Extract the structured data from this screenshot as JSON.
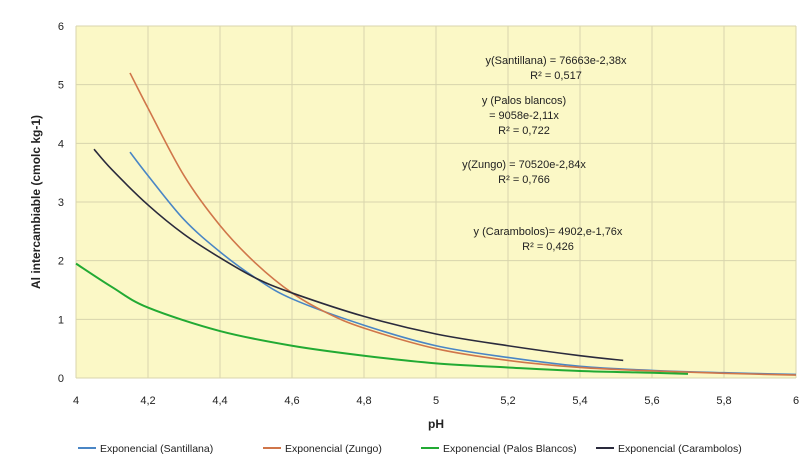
{
  "chart_data": {
    "type": "line",
    "xlabel": "pH",
    "ylabel": "Al intercambiable (cmolc kg-1)",
    "xlim": [
      4,
      6
    ],
    "ylim": [
      0,
      6
    ],
    "x_ticks": [
      "4",
      "4,2",
      "4,4",
      "4,6",
      "4,8",
      "5",
      "5,2",
      "5,4",
      "5,6",
      "5,8",
      "6"
    ],
    "y_ticks": [
      "0",
      "1",
      "2",
      "3",
      "4",
      "5",
      "6"
    ],
    "grid": true,
    "background": "#fbf8c6",
    "legend_position": "bottom",
    "series": [
      {
        "name": "Exponencial (Santillana)",
        "color": "#4a86c5",
        "x": [
          4.15,
          4.2,
          4.3,
          4.4,
          4.5,
          4.6,
          4.8,
          5.0,
          5.2,
          5.4,
          5.6,
          5.8,
          6.0
        ],
        "y": [
          3.85,
          3.45,
          2.7,
          2.15,
          1.7,
          1.35,
          0.9,
          0.55,
          0.35,
          0.2,
          0.13,
          0.09,
          0.06
        ]
      },
      {
        "name": "Exponencial (Zungo)",
        "color": "#d0764a",
        "x": [
          4.15,
          4.2,
          4.3,
          4.4,
          4.5,
          4.6,
          4.7,
          4.8,
          5.0,
          5.2,
          5.4,
          5.6,
          5.8,
          6.0
        ],
        "y": [
          5.2,
          4.6,
          3.45,
          2.6,
          1.95,
          1.45,
          1.1,
          0.85,
          0.5,
          0.3,
          0.18,
          0.12,
          0.08,
          0.05
        ]
      },
      {
        "name": "Exponencial (Palos Blancos)",
        "color": "#22aa33",
        "x": [
          4.0,
          4.1,
          4.2,
          4.4,
          4.6,
          4.8,
          5.0,
          5.2,
          5.4,
          5.6,
          5.7
        ],
        "y": [
          1.95,
          1.55,
          1.2,
          0.8,
          0.55,
          0.38,
          0.25,
          0.18,
          0.12,
          0.09,
          0.07
        ]
      },
      {
        "name": "Exponencial (Carambolos)",
        "color": "#2a2a3c",
        "x": [
          4.05,
          4.1,
          4.2,
          4.3,
          4.4,
          4.5,
          4.6,
          4.8,
          5.0,
          5.2,
          5.4,
          5.52
        ],
        "y": [
          3.9,
          3.55,
          2.95,
          2.45,
          2.05,
          1.7,
          1.45,
          1.05,
          0.75,
          0.55,
          0.38,
          0.3
        ]
      }
    ],
    "annotations": [
      [
        "y(Santillana) = 76663e-2,38x",
        "R² = 0,517"
      ],
      [
        "y (Palos blancos)",
        "= 9058e-2,11x",
        "R² = 0,722"
      ],
      [
        "y(Zungo) = 70520e-2,84x",
        "R² = 0,766"
      ],
      [
        "y (Carambolos)= 4902,e-1,76x",
        "R² = 0,426"
      ]
    ]
  }
}
